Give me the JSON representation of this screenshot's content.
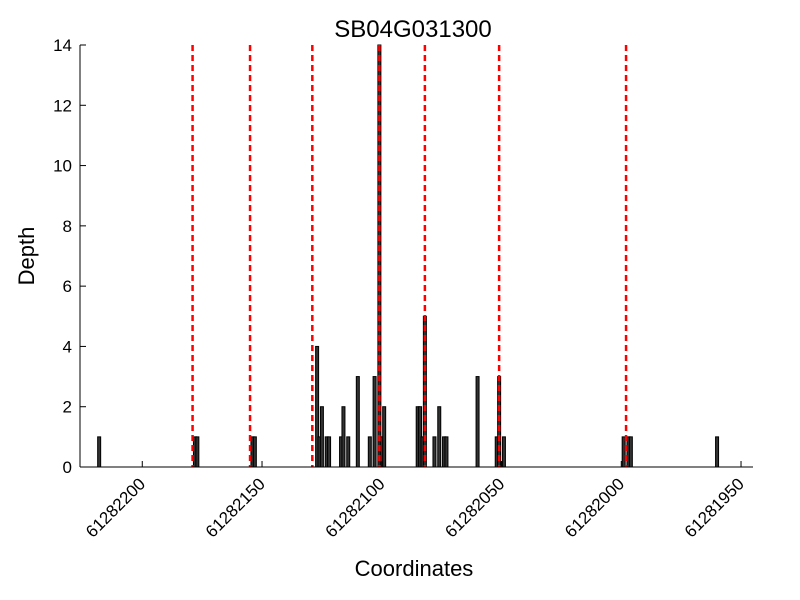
{
  "chart_data": {
    "type": "bar",
    "title": "SB04G031300",
    "xlabel": "Coordinates",
    "ylabel": "Depth",
    "xlim": [
      61282226,
      61281945
    ],
    "ylim": [
      0,
      14
    ],
    "x_reversed": true,
    "xticks": [
      61282200,
      61282150,
      61282100,
      61282050,
      61282000,
      61281950
    ],
    "yticks": [
      0,
      2,
      4,
      6,
      8,
      10,
      12,
      14
    ],
    "grid": false,
    "bars": [
      {
        "x": 61282218,
        "value": 1
      },
      {
        "x": 61282178,
        "value": 1
      },
      {
        "x": 61282177,
        "value": 1
      },
      {
        "x": 61282154,
        "value": 1
      },
      {
        "x": 61282153,
        "value": 1
      },
      {
        "x": 61282127,
        "value": 4
      },
      {
        "x": 61282126,
        "value": 1
      },
      {
        "x": 61282125,
        "value": 2
      },
      {
        "x": 61282123,
        "value": 1
      },
      {
        "x": 61282122,
        "value": 1
      },
      {
        "x": 61282117,
        "value": 1
      },
      {
        "x": 61282116,
        "value": 2
      },
      {
        "x": 61282114,
        "value": 1
      },
      {
        "x": 61282110,
        "value": 3
      },
      {
        "x": 61282105,
        "value": 1
      },
      {
        "x": 61282103,
        "value": 3
      },
      {
        "x": 61282101,
        "value": 14
      },
      {
        "x": 61282100,
        "value": 1
      },
      {
        "x": 61282099,
        "value": 2
      },
      {
        "x": 61282085,
        "value": 2
      },
      {
        "x": 61282084,
        "value": 2
      },
      {
        "x": 61282083,
        "value": 1
      },
      {
        "x": 61282082,
        "value": 5
      },
      {
        "x": 61282078,
        "value": 1
      },
      {
        "x": 61282076,
        "value": 2
      },
      {
        "x": 61282074,
        "value": 1
      },
      {
        "x": 61282073,
        "value": 1
      },
      {
        "x": 61282060,
        "value": 3
      },
      {
        "x": 61282052,
        "value": 1
      },
      {
        "x": 61282051,
        "value": 3
      },
      {
        "x": 61282049,
        "value": 1
      },
      {
        "x": 61281999,
        "value": 1
      },
      {
        "x": 61281997,
        "value": 1
      },
      {
        "x": 61281996,
        "value": 1
      },
      {
        "x": 61281960,
        "value": 1
      }
    ],
    "vlines": [
      61282179,
      61282155,
      61282129,
      61282101,
      61282082,
      61282051,
      61281998
    ],
    "bar_color": "#333333",
    "bar_edge_color": "#000000",
    "vline_color": "#ff0000",
    "vline_style": "dashed"
  }
}
